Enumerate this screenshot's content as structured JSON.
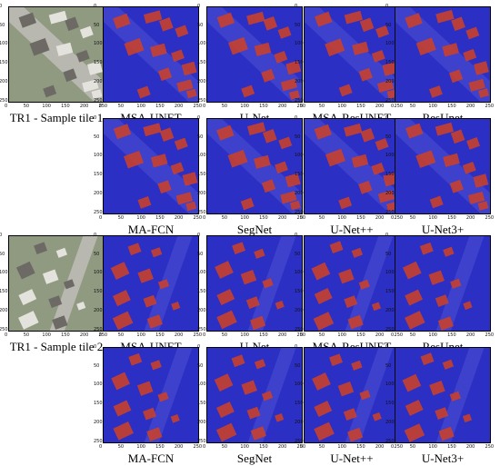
{
  "figure": {
    "groups": [
      {
        "sample_caption": "TR1 - Sample tile 1",
        "row1_labels": [
          "MSA-UNET",
          "U-Net",
          "MSA-ResUNET",
          "ResUnet"
        ],
        "row2_labels": [
          "MA-FCN",
          "SegNet",
          "U-Net++",
          "U-Net3+"
        ]
      },
      {
        "sample_caption": "TR1 - Sample tile 2",
        "row1_labels": [
          "MSA-UNET",
          "U-Net",
          "MSA-ResUNET",
          "ResUnet"
        ],
        "row2_labels": [
          "MA-FCN",
          "SegNet",
          "U-Net++",
          "U-Net3+"
        ]
      }
    ],
    "axis_ticks_x": [
      "0",
      "50",
      "100",
      "150",
      "200",
      "250"
    ],
    "axis_ticks_y": [
      "0",
      "50",
      "100",
      "150",
      "200",
      "250"
    ],
    "colors": {
      "background_class": "#2b2fc4",
      "building_class": "#c8402e",
      "road_tint": "#4a4fd0",
      "aerial_ground": "#8f9a80"
    }
  }
}
